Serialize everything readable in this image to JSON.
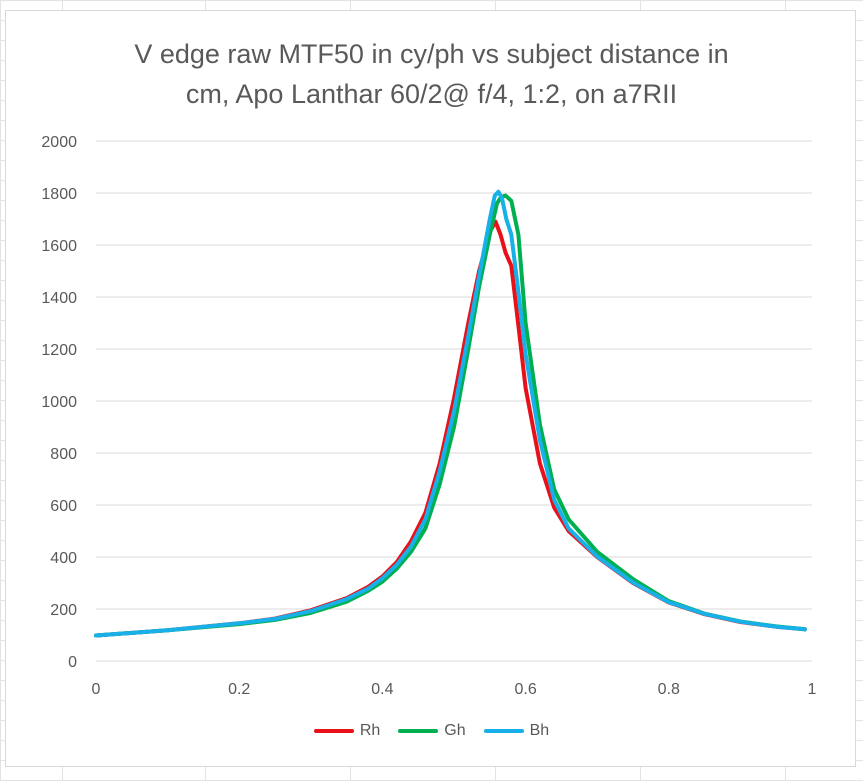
{
  "chart_data": {
    "type": "line",
    "title": [
      "V edge raw MTF50 in cy/ph vs subject distance in",
      "cm, Apo Lanthar 60/2@ f/4, 1:2, on a7RII"
    ],
    "xlim": [
      0,
      1
    ],
    "ylim": [
      0,
      2000
    ],
    "x_ticks": [
      "0",
      "0.2",
      "0.4",
      "0.6",
      "0.8",
      "1"
    ],
    "y_ticks": [
      "0",
      "200",
      "400",
      "600",
      "800",
      "1000",
      "1200",
      "1400",
      "1600",
      "1800",
      "2000"
    ],
    "grid": "horizontal",
    "legend": "bottom",
    "series": [
      {
        "name": "Rh",
        "color": "#e8111a",
        "points": [
          [
            0,
            98
          ],
          [
            0.1,
            118
          ],
          [
            0.2,
            145
          ],
          [
            0.25,
            163
          ],
          [
            0.3,
            195
          ],
          [
            0.35,
            242
          ],
          [
            0.38,
            285
          ],
          [
            0.4,
            325
          ],
          [
            0.42,
            380
          ],
          [
            0.44,
            460
          ],
          [
            0.46,
            570
          ],
          [
            0.48,
            760
          ],
          [
            0.5,
            1010
          ],
          [
            0.52,
            1300
          ],
          [
            0.535,
            1500
          ],
          [
            0.55,
            1650
          ],
          [
            0.558,
            1690
          ],
          [
            0.565,
            1640
          ],
          [
            0.572,
            1570
          ],
          [
            0.58,
            1520
          ],
          [
            0.59,
            1290
          ],
          [
            0.6,
            1050
          ],
          [
            0.62,
            760
          ],
          [
            0.64,
            590
          ],
          [
            0.66,
            500
          ],
          [
            0.7,
            400
          ],
          [
            0.75,
            300
          ],
          [
            0.8,
            225
          ],
          [
            0.85,
            180
          ],
          [
            0.9,
            150
          ],
          [
            0.95,
            132
          ],
          [
            0.99,
            122
          ]
        ]
      },
      {
        "name": "Gh",
        "color": "#00b050",
        "points": [
          [
            0,
            98
          ],
          [
            0.1,
            118
          ],
          [
            0.2,
            142
          ],
          [
            0.25,
            158
          ],
          [
            0.3,
            185
          ],
          [
            0.35,
            228
          ],
          [
            0.38,
            270
          ],
          [
            0.4,
            305
          ],
          [
            0.42,
            355
          ],
          [
            0.44,
            420
          ],
          [
            0.46,
            510
          ],
          [
            0.48,
            680
          ],
          [
            0.5,
            900
          ],
          [
            0.52,
            1200
          ],
          [
            0.535,
            1440
          ],
          [
            0.55,
            1640
          ],
          [
            0.56,
            1760
          ],
          [
            0.566,
            1785
          ],
          [
            0.572,
            1790
          ],
          [
            0.58,
            1770
          ],
          [
            0.59,
            1640
          ],
          [
            0.6,
            1300
          ],
          [
            0.62,
            910
          ],
          [
            0.64,
            660
          ],
          [
            0.66,
            545
          ],
          [
            0.7,
            420
          ],
          [
            0.75,
            315
          ],
          [
            0.8,
            230
          ],
          [
            0.85,
            182
          ],
          [
            0.9,
            152
          ],
          [
            0.95,
            133
          ],
          [
            0.99,
            122
          ]
        ]
      },
      {
        "name": "Bh",
        "color": "#17b0e8",
        "points": [
          [
            0,
            98
          ],
          [
            0.1,
            118
          ],
          [
            0.2,
            145
          ],
          [
            0.25,
            162
          ],
          [
            0.3,
            192
          ],
          [
            0.35,
            238
          ],
          [
            0.38,
            278
          ],
          [
            0.4,
            318
          ],
          [
            0.42,
            370
          ],
          [
            0.44,
            440
          ],
          [
            0.46,
            545
          ],
          [
            0.48,
            730
          ],
          [
            0.5,
            960
          ],
          [
            0.52,
            1250
          ],
          [
            0.535,
            1480
          ],
          [
            0.55,
            1700
          ],
          [
            0.557,
            1790
          ],
          [
            0.562,
            1805
          ],
          [
            0.567,
            1780
          ],
          [
            0.573,
            1700
          ],
          [
            0.58,
            1640
          ],
          [
            0.59,
            1420
          ],
          [
            0.6,
            1180
          ],
          [
            0.62,
            850
          ],
          [
            0.64,
            620
          ],
          [
            0.66,
            510
          ],
          [
            0.7,
            402
          ],
          [
            0.75,
            302
          ],
          [
            0.8,
            226
          ],
          [
            0.85,
            181
          ],
          [
            0.9,
            151
          ],
          [
            0.95,
            132
          ],
          [
            0.99,
            122
          ]
        ]
      }
    ]
  }
}
